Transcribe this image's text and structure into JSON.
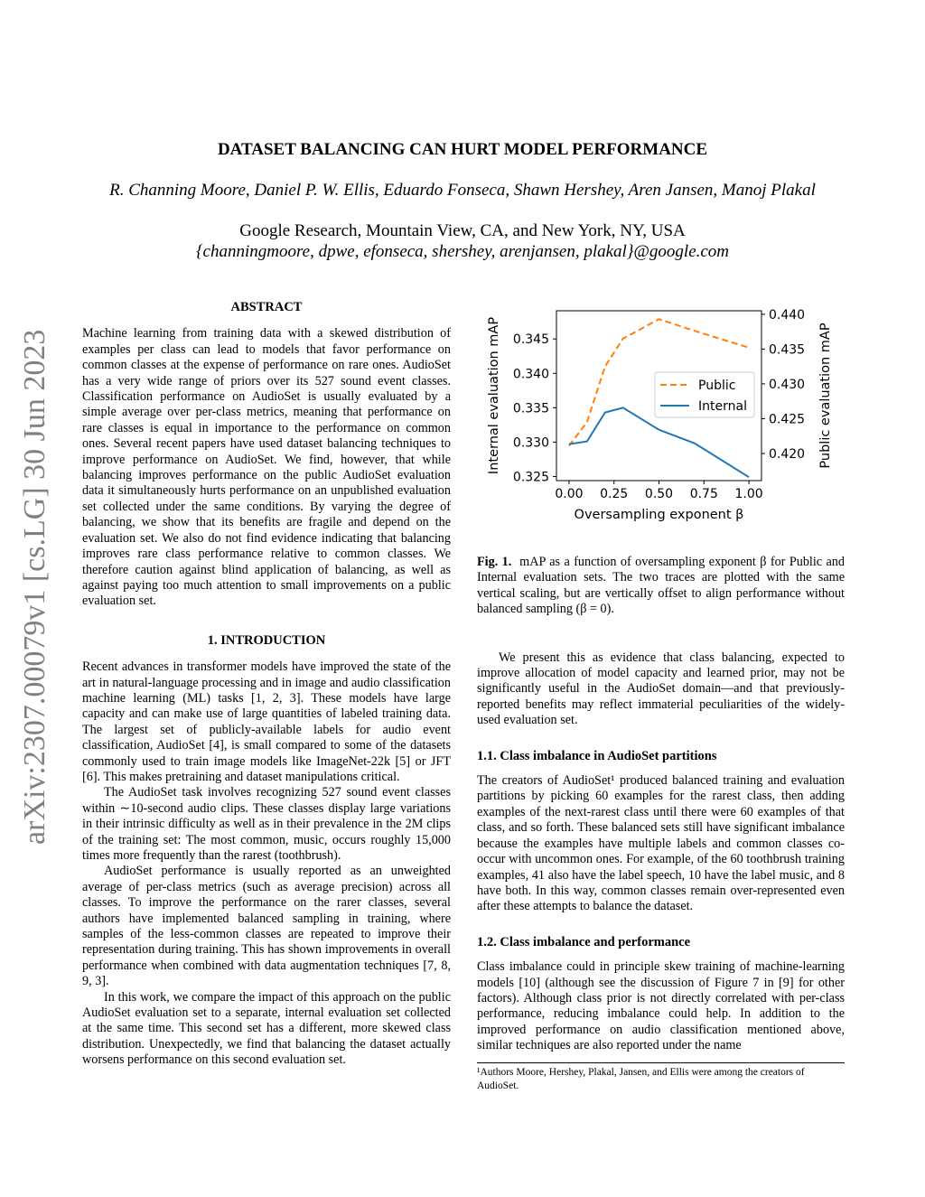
{
  "arxiv_id": "arXiv:2307.00079v1  [cs.LG]  30 Jun 2023",
  "title": "DATASET BALANCING CAN HURT MODEL PERFORMANCE",
  "authors": "R. Channing Moore, Daniel P. W. Ellis, Eduardo Fonseca, Shawn Hershey, Aren Jansen, Manoj Plakal",
  "affiliation": "Google Research, Mountain View, CA, and New York, NY, USA",
  "emails": "{channingmoore, dpwe, efonseca, shershey, arenjansen, plakal}@google.com",
  "abstract": {
    "heading": "ABSTRACT",
    "text": "Machine learning from training data with a skewed distribution of examples per class can lead to models that favor performance on common classes at the expense of performance on rare ones. AudioSet has a very wide range of priors over its 527 sound event classes. Classification performance on AudioSet is usually evaluated by a simple average over per-class metrics, meaning that performance on rare classes is equal in importance to the performance on common ones. Several recent papers have used dataset balancing techniques to improve performance on AudioSet. We find, however, that while balancing improves performance on the public AudioSet evaluation data it simultaneously hurts performance on an unpublished evaluation set collected under the same conditions. By varying the degree of balancing, we show that its benefits are fragile and depend on the evaluation set. We also do not find evidence indicating that balancing improves rare class performance relative to common classes. We therefore caution against blind application of balancing, as well as against paying too much attention to small improvements on a public evaluation set."
  },
  "intro": {
    "heading": "1.  INTRODUCTION",
    "paragraphs": [
      "Recent advances in transformer models have improved the state of the art in natural-language processing and in image and audio classification machine learning (ML) tasks [1, 2, 3]. These models have large capacity and can make use of large quantities of labeled training data. The largest set of publicly-available labels for audio event classification, AudioSet [4], is small compared to some of the datasets commonly used to train image models like ImageNet-22k [5] or JFT [6]. This makes pretraining and dataset manipulations critical.",
      "The AudioSet task involves recognizing 527 sound event classes within ∼10-second audio clips. These classes display large variations in their intrinsic difficulty as well as in their prevalence in the 2M clips of the training set: The most common, music, occurs roughly 15,000 times more frequently than the rarest (toothbrush).",
      "AudioSet performance is usually reported as an unweighted average of per-class metrics (such as average precision) across all classes. To improve the performance on the rarer classes, several authors have implemented balanced sampling in training, where samples of the less-common classes are repeated to improve their representation during training. This has shown improvements in overall performance when combined with data augmentation techniques [7, 8, 9, 3].",
      "In this work, we compare the impact of this approach on the public AudioSet evaluation set to a separate, internal evaluation set collected at the same time. This second set has a different, more skewed class distribution. Unexpectedly, we find that balancing the dataset actually worsens performance on this second evaluation set."
    ]
  },
  "figure": {
    "caption_label": "Fig. 1.",
    "caption": "mAP as a function of oversampling exponent β for Public and Internal evaluation sets. The two traces are plotted with the same vertical scaling, but are vertically offset to align performance without balanced sampling (β = 0)."
  },
  "chart_data": {
    "type": "line",
    "xlabel": "Oversampling exponent β",
    "ylabel": "Internal evaluation mAP",
    "ylabel_right": "Public evaluation mAP",
    "xlim": [
      -0.07,
      1.07
    ],
    "ylim": [
      0.3244,
      0.3491
    ],
    "ylim_right": [
      0.4161,
      0.4405
    ],
    "xticks": [
      "0.00",
      "0.25",
      "0.50",
      "0.75",
      "1.00"
    ],
    "yticks": [
      "0.325",
      "0.330",
      "0.335",
      "0.340",
      "0.345"
    ],
    "yticks_right": [
      "0.420",
      "0.425",
      "0.430",
      "0.435",
      "0.440"
    ],
    "legend_position": "center-right",
    "grid": false,
    "series": [
      {
        "name": "Public",
        "axis": "right",
        "style": "dashed",
        "color": "#ff7f0e",
        "x": [
          0,
          0.1,
          0.2,
          0.3,
          0.5,
          0.7,
          1.0
        ],
        "y": [
          0.4211,
          0.4245,
          0.4325,
          0.4365,
          0.4393,
          0.4376,
          0.4352
        ]
      },
      {
        "name": "Internal",
        "axis": "left",
        "style": "solid",
        "color": "#1f77b4",
        "x": [
          0,
          0.1,
          0.2,
          0.3,
          0.5,
          0.7,
          1.0
        ],
        "y": [
          0.3297,
          0.3301,
          0.3343,
          0.335,
          0.3318,
          0.3298,
          0.3249
        ]
      }
    ]
  },
  "right_intro": "We present this as evidence that class balancing, expected to improve allocation of model capacity and learned prior, may not be significantly useful in the AudioSet domain—and that previously-reported benefits may reflect immaterial peculiarities of the widely-used evaluation set.",
  "sec11": {
    "heading": "1.1.  Class imbalance in AudioSet partitions",
    "text": "The creators of AudioSet¹ produced balanced training and evaluation partitions by picking 60 examples for the rarest class, then adding examples of the next-rarest class until there were 60 examples of that class, and so forth. These balanced sets still have significant imbalance because the examples have multiple labels and common classes co-occur with uncommon ones. For example, of the 60 toothbrush training examples, 41 also have the label speech, 10 have the label music, and 8 have both. In this way, common classes remain over-represented even after these attempts to balance the dataset."
  },
  "sec12": {
    "heading": "1.2.  Class imbalance and performance",
    "text": "Class imbalance could in principle skew training of machine-learning models [10] (although see the discussion of Figure 7 in [9] for other factors). Although class prior is not directly correlated with per-class performance, reducing imbalance could help. In addition to the improved performance on audio classification mentioned above, similar techniques are also reported under the name"
  },
  "footnote": "¹Authors Moore, Hershey, Plakal, Jansen, and Ellis were among the creators of AudioSet."
}
